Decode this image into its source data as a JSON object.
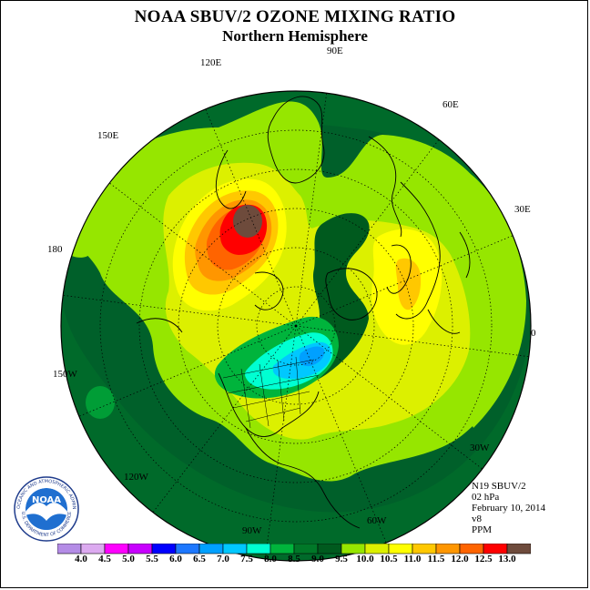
{
  "header": {
    "title": "NOAA SBUV/2 OZONE MIXING RATIO",
    "subtitle": "Northern Hemisphere"
  },
  "longitude_labels": [
    "90E",
    "60E",
    "30E",
    "0",
    "30W",
    "60W",
    "90W",
    "120W",
    "150W",
    "180",
    "150E",
    "120E"
  ],
  "info": {
    "satellite": "N19 SBUV/2",
    "level": "02 hPa",
    "date": "February 10, 2014",
    "version": "v8",
    "units": "PPM"
  },
  "colorbar": {
    "labels": [
      "4.0",
      "4.5",
      "5.0",
      "5.5",
      "6.0",
      "6.5",
      "7.0",
      "7.5",
      "8.0",
      "8.5",
      "9.0",
      "9.5",
      "10.0",
      "10.5",
      "11.0",
      "11.5",
      "12.0",
      "12.5",
      "13.0"
    ],
    "colors": [
      "#b48ce6",
      "#dcaaf0",
      "#ff00ff",
      "#c800ff",
      "#0000ff",
      "#1e78ff",
      "#00a0ff",
      "#00c8ff",
      "#00ffd2",
      "#00b43c",
      "#007828",
      "#005a1e",
      "#96e600",
      "#dcf000",
      "#ffff00",
      "#ffc800",
      "#ff9600",
      "#ff6400",
      "#ff0000",
      "#6e4b3c"
    ]
  },
  "logo": {
    "text": "NOAA",
    "ring_text": "NATIONAL OCEANIC AND ATMOSPHERIC ADMINISTRATION",
    "ring_text_bottom": "U.S. DEPARTMENT OF COMMERCE"
  },
  "map": {
    "projection": "north polar stereographic",
    "colors": {
      "background": "#006a2a",
      "light_green": "#96e600",
      "yellow_green": "#dcf000",
      "yellow": "#ffff00",
      "gold": "#ffc800",
      "orange": "#ff9600",
      "dark_orange": "#ff6400",
      "red": "#ff0000",
      "brown": "#6e4b3c",
      "teal": "#00ffd2",
      "cyan": "#00c8ff",
      "sky": "#00a0ff",
      "mid_green": "#00b43c"
    }
  }
}
